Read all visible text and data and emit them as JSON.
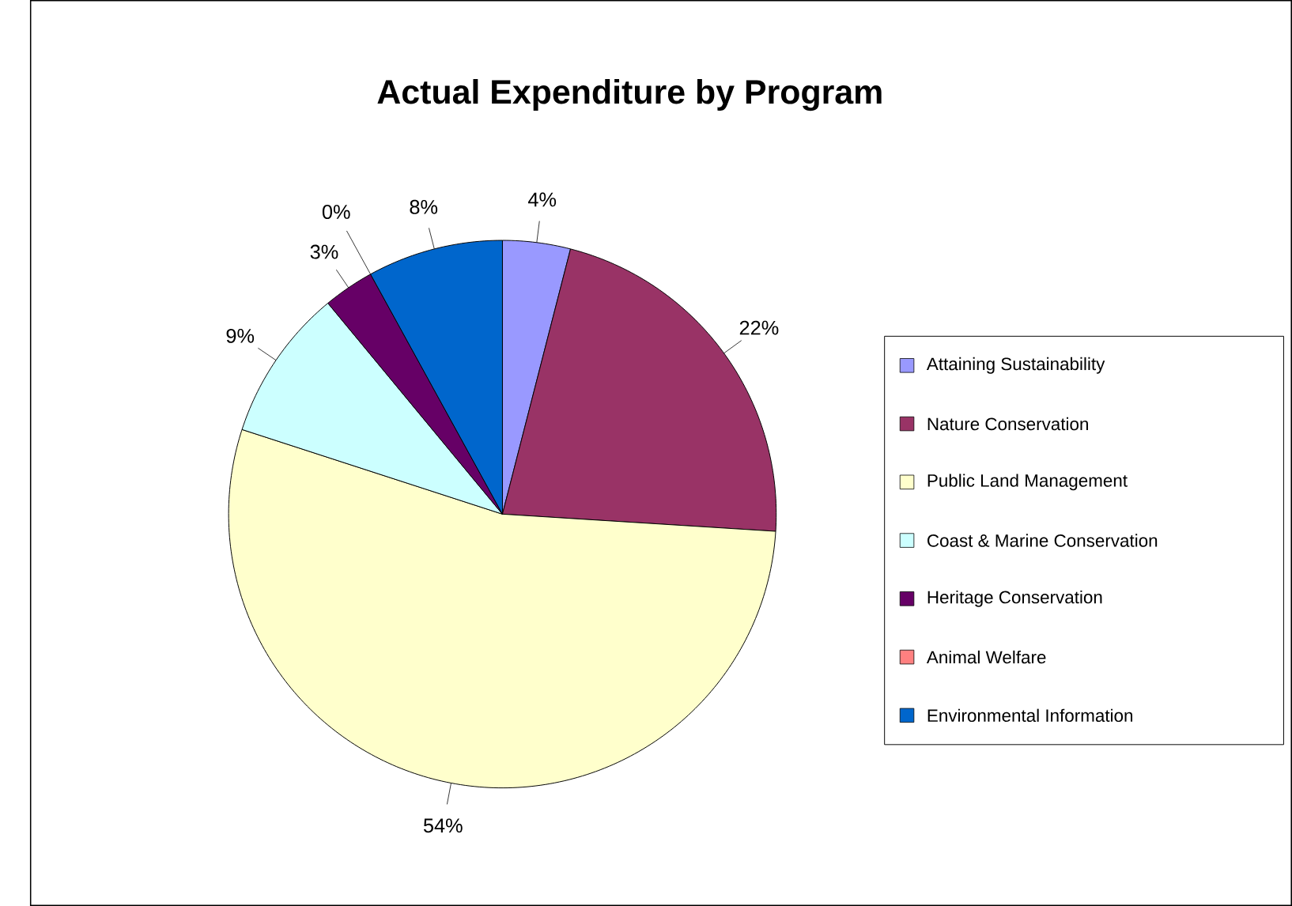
{
  "chart_data": {
    "type": "pie",
    "title": "Actual Expenditure by Program",
    "categories": [
      "Attaining Sustainability",
      "Nature Conservation",
      "Public Land Management",
      "Coast & Marine Conservation",
      "Heritage Conservation",
      "Animal Welfare",
      "Environmental Information"
    ],
    "values": [
      4,
      22,
      54,
      9,
      3,
      0,
      8
    ],
    "colors": [
      "#9999ff",
      "#993366",
      "#ffffcc",
      "#ccffff",
      "#660066",
      "#ff8080",
      "#0066cc"
    ],
    "value_labels": [
      "4%",
      "22%",
      "54%",
      "9%",
      "3%",
      "0%",
      "8%"
    ],
    "legend": "right"
  }
}
